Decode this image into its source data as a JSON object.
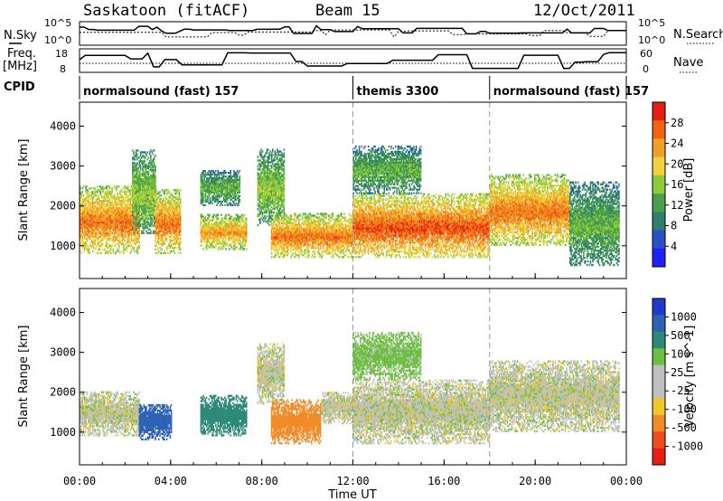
{
  "header": {
    "station": "Saskatoon (fitACF)",
    "beam": "Beam 15",
    "date": "12/Oct/2011"
  },
  "side_labels": {
    "nsky": "N.Sky",
    "nsearch": "N.Search",
    "freq_line1": "Freq.",
    "freq_line2": "[MHz]",
    "nave": "Nave",
    "cpid": "CPID"
  },
  "strip_ticks": {
    "noise_left_top": "10^5",
    "noise_left_bottom": "10^0",
    "noise_right_top": "10^5",
    "noise_right_bottom": "10^0",
    "freq_left_top": "18",
    "freq_left_bottom": "8",
    "nave_right_top": "60",
    "nave_right_bottom": "0"
  },
  "cpid_segments": [
    {
      "label": "normalsound (fast) 157",
      "start_h": 0.0
    },
    {
      "label": "themis 3300",
      "start_h": 12.0
    },
    {
      "label": "normalsound (fast) 157",
      "start_h": 18.0
    }
  ],
  "colors": {
    "power": [
      "#1f1fff",
      "#2850c8",
      "#2f7f6f",
      "#4aa04a",
      "#8ccc3c",
      "#f0d23c",
      "#f0a028",
      "#f06414",
      "#e61e14"
    ],
    "velocity": [
      "#1e3cc8",
      "#2e62b4",
      "#2e8a78",
      "#6cc040",
      "#c0c0c0",
      "#c0c0c0",
      "#f0c828",
      "#f08c28",
      "#f04c1e",
      "#e61e14"
    ],
    "ground_scatter": "#b4b4b4"
  },
  "chart_data": [
    {
      "type": "heatmap",
      "name": "power",
      "xlabel": "Time UT",
      "ylabel": "Slant Range [km]",
      "xlim": [
        0,
        24
      ],
      "ylim": [
        180,
        4600
      ],
      "x_ticks": [
        "00:00",
        "04:00",
        "08:00",
        "12:00",
        "16:00",
        "20:00",
        "00:00"
      ],
      "x_tick_values": [
        0,
        4,
        8,
        12,
        16,
        20,
        24
      ],
      "y_ticks": [
        "1000",
        "2000",
        "3000",
        "4000"
      ],
      "y_tick_values": [
        1000,
        2000,
        3000,
        4000
      ],
      "colorbar": {
        "label": "Power [dB]",
        "ticks": [
          "28",
          "24",
          "20",
          "16",
          "12",
          "8",
          "4"
        ],
        "tick_values": [
          28,
          24,
          20,
          16,
          12,
          8,
          4
        ],
        "range": [
          0,
          30
        ]
      },
      "scatter_regions": [
        {
          "t0": 0.0,
          "t1": 2.6,
          "r0": 800,
          "r1": 2500,
          "power": 22
        },
        {
          "t0": 2.3,
          "t1": 3.3,
          "r0": 1300,
          "r1": 3400,
          "power": 14
        },
        {
          "t0": 3.3,
          "t1": 4.4,
          "r0": 800,
          "r1": 2400,
          "power": 22
        },
        {
          "t0": 5.3,
          "t1": 7.3,
          "r0": 900,
          "r1": 1800,
          "power": 20
        },
        {
          "t0": 5.3,
          "t1": 7.0,
          "r0": 2000,
          "r1": 2900,
          "power": 12
        },
        {
          "t0": 7.8,
          "t1": 9.0,
          "r0": 1500,
          "r1": 3400,
          "power": 14
        },
        {
          "t0": 8.4,
          "t1": 12.0,
          "r0": 700,
          "r1": 1800,
          "power": 22
        },
        {
          "t0": 12.0,
          "t1": 18.0,
          "r0": 700,
          "r1": 2300,
          "power": 24
        },
        {
          "t0": 12.0,
          "t1": 15.0,
          "r0": 2300,
          "r1": 3500,
          "power": 12
        },
        {
          "t0": 18.0,
          "t1": 21.5,
          "r0": 1000,
          "r1": 2800,
          "power": 22
        },
        {
          "t0": 21.5,
          "t1": 23.7,
          "r0": 500,
          "r1": 2600,
          "power": 12
        }
      ]
    },
    {
      "type": "heatmap",
      "name": "velocity",
      "xlabel": "Time UT",
      "ylabel": "Slant Range [km]",
      "xlim": [
        0,
        24
      ],
      "ylim": [
        180,
        4600
      ],
      "x_ticks": [
        "00:00",
        "04:00",
        "08:00",
        "12:00",
        "16:00",
        "20:00",
        "00:00"
      ],
      "x_tick_values": [
        0,
        4,
        8,
        12,
        16,
        20,
        24
      ],
      "y_ticks": [
        "1000",
        "2000",
        "3000",
        "4000"
      ],
      "y_tick_values": [
        1000,
        2000,
        3000,
        4000
      ],
      "colorbar": {
        "label": "Velocity [m s^-1]",
        "ticks": [
          "1000",
          "500",
          "100",
          "25",
          "-25",
          "-100",
          "-500",
          "-1000"
        ],
        "tick_values": [
          1000,
          500,
          100,
          25,
          -25,
          -100,
          -500,
          -1000
        ]
      },
      "scatter_regions": [
        {
          "t0": 0.0,
          "t1": 2.6,
          "r0": 900,
          "r1": 2000,
          "velocity": 0
        },
        {
          "t0": 2.6,
          "t1": 4.0,
          "r0": 800,
          "r1": 1700,
          "velocity": 800
        },
        {
          "t0": 5.3,
          "t1": 7.3,
          "r0": 900,
          "r1": 1900,
          "velocity": 150
        },
        {
          "t0": 7.8,
          "t1": 9.0,
          "r0": 1700,
          "r1": 3200,
          "velocity": 0
        },
        {
          "t0": 8.4,
          "t1": 10.6,
          "r0": 700,
          "r1": 1800,
          "velocity": -150
        },
        {
          "t0": 10.6,
          "t1": 12.0,
          "r0": 1200,
          "r1": 2000,
          "velocity": 0
        },
        {
          "t0": 12.0,
          "t1": 18.0,
          "r0": 700,
          "r1": 2300,
          "velocity": 0
        },
        {
          "t0": 12.0,
          "t1": 15.0,
          "r0": 2300,
          "r1": 3500,
          "velocity": 50
        },
        {
          "t0": 18.0,
          "t1": 23.7,
          "r0": 1000,
          "r1": 2800,
          "velocity": 0
        }
      ]
    }
  ]
}
